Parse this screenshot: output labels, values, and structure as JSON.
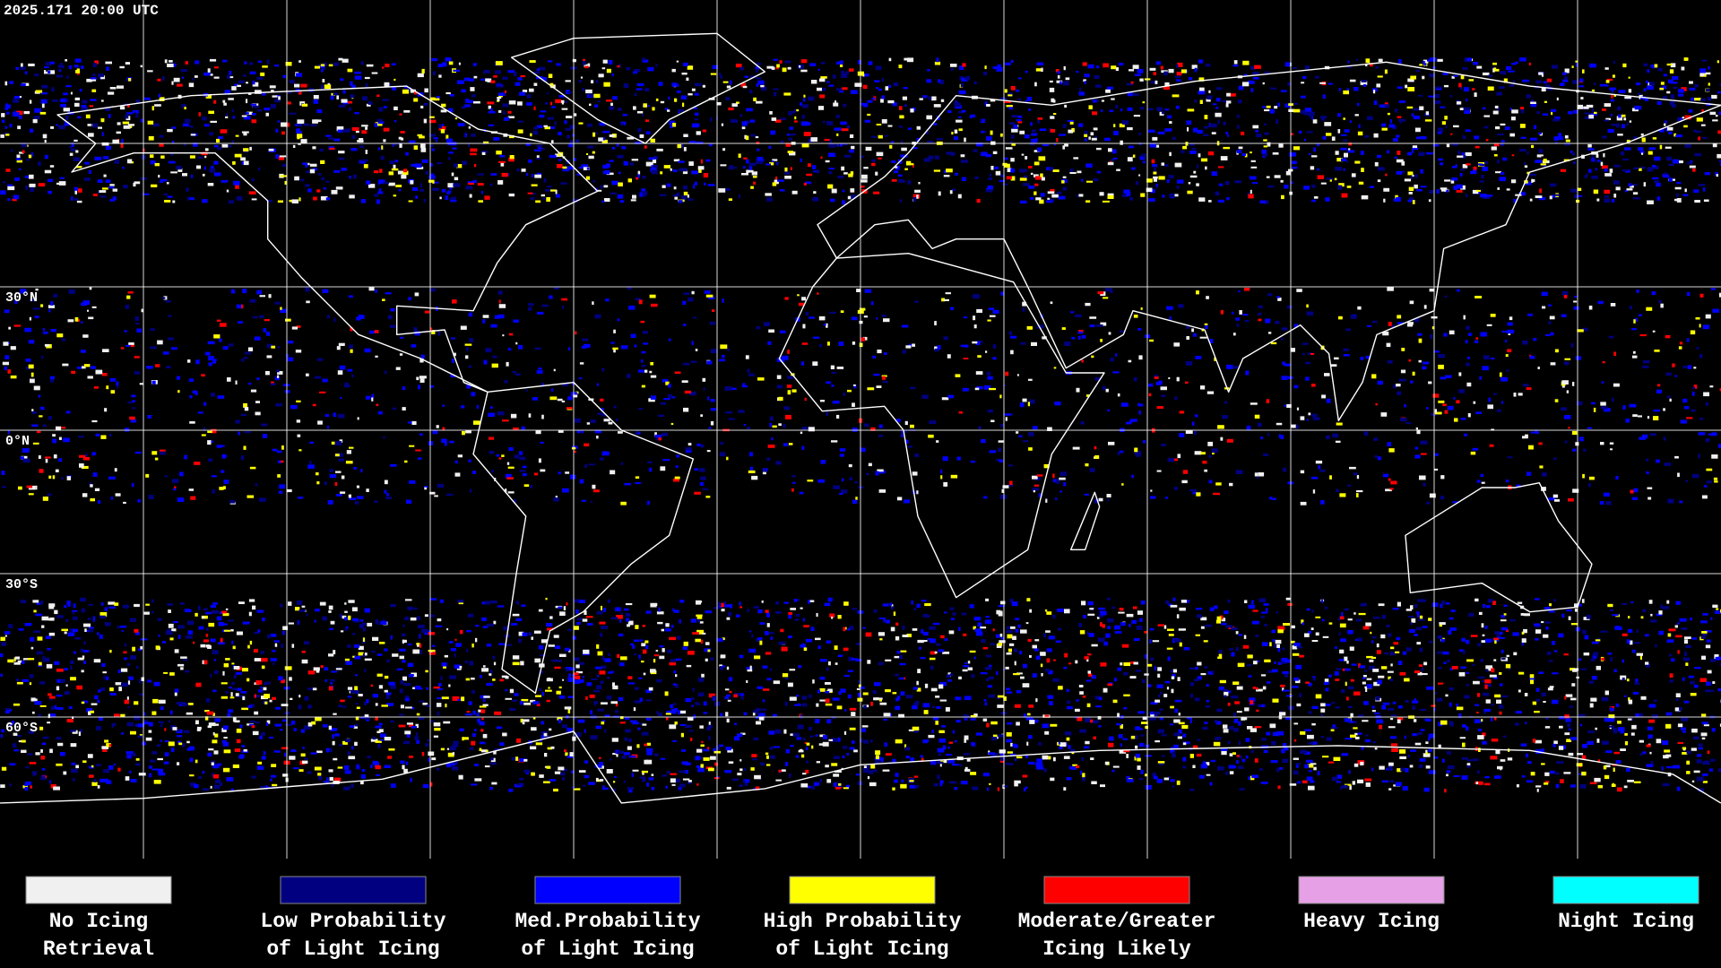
{
  "timestamp": "2025.171 20:00 UTC",
  "latitude_labels": [
    "30°N",
    "0°N",
    "30°S",
    "60°S"
  ],
  "legend": {
    "items": [
      {
        "label": [
          "No Icing",
          "Retrieval"
        ],
        "color": "#f0f0f0"
      },
      {
        "label": [
          "Low Probability",
          "of Light Icing"
        ],
        "color": "#000080"
      },
      {
        "label": [
          "Med.Probability",
          "of Light Icing"
        ],
        "color": "#0000ff"
      },
      {
        "label": [
          "High Probability",
          "of Light Icing"
        ],
        "color": "#ffff00"
      },
      {
        "label": [
          "Moderate/Greater",
          "Icing Likely"
        ],
        "color": "#ff0000"
      },
      {
        "label": [
          "Heavy Icing"
        ],
        "color": "#e6a0e6"
      },
      {
        "label": [
          "Night Icing"
        ],
        "color": "#00ffff"
      }
    ]
  }
}
